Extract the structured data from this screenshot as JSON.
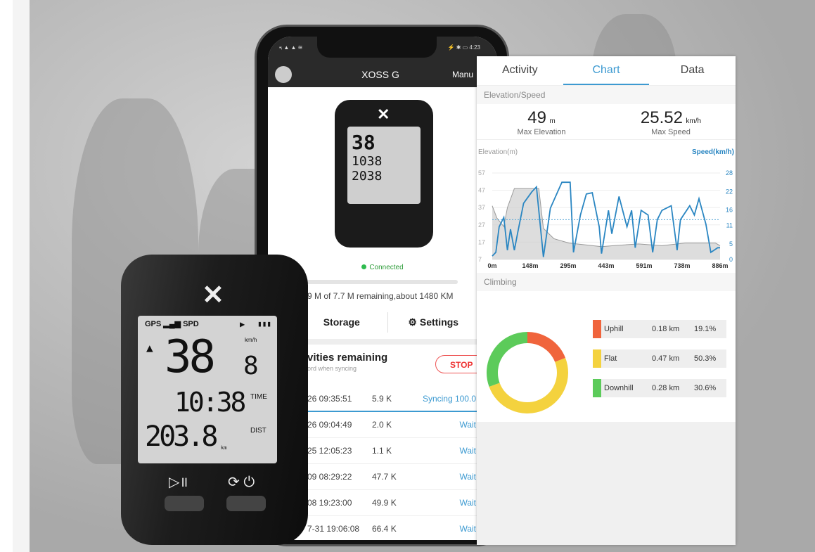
{
  "phone": {
    "status_left": "▪ᵢ ▲ ▲ ≋",
    "status_right": "⚡ ✱ ▭ 4:23",
    "app_title": "XOSS G",
    "manual_label": "Manu",
    "mini_device": {
      "speed": "38",
      "dec": "8",
      "time": "1038",
      "dist": "2038"
    },
    "connection_status": "Connected",
    "storage_fraction": 0.03,
    "storage_text": "9 M of 7.7 M remaining,about 1480 KM",
    "storage_label": "Storage",
    "settings_label": "Settings",
    "activities_heading": "vities remaining",
    "activities_sub": "ord when syncing",
    "stop_label": "STOP",
    "rows": [
      {
        "date": "26 09:35:51",
        "size": "5.9 K",
        "status": "Syncing 100.0"
      },
      {
        "date": "26 09:04:49",
        "size": "2.0 K",
        "status": "Wait"
      },
      {
        "date": "25 12:05:23",
        "size": "1.1 K",
        "status": "Wait"
      },
      {
        "date": "09 08:29:22",
        "size": "47.7 K",
        "status": "Wait"
      },
      {
        "date": "08 19:23:00",
        "size": "49.9 K",
        "status": "Wait"
      },
      {
        "date": "7-31 19:06:08",
        "size": "66.4 K",
        "status": "Wait"
      }
    ]
  },
  "panel": {
    "tabs": [
      "Activity",
      "Chart",
      "Data"
    ],
    "active_tab": "Chart",
    "section_elev": "Elevation/Speed",
    "max_elev": "49",
    "max_elev_unit": "m",
    "max_elev_label": "Max Elevation",
    "max_speed": "25.52",
    "max_speed_unit": "km/h",
    "max_speed_label": "Max Speed",
    "section_climb": "Climbing"
  },
  "device": {
    "gps": "GPS",
    "spd": "SPD",
    "speed": "38",
    "dec": "8",
    "unit": "km/h",
    "time_label": "TIME",
    "time": "10:38",
    "dist_label": "DIST",
    "dist": "203.8",
    "dist_unit": "km"
  },
  "chart_data": [
    {
      "type": "line",
      "ylabel": "Elevation(m)",
      "y2label": "Speed(km/h)",
      "x_ticks": [
        "0m",
        "148m",
        "295m",
        "443m",
        "591m",
        "738m",
        "886m"
      ],
      "xlim": [
        0,
        886
      ],
      "y_ticks": [
        57,
        47,
        37,
        27,
        17,
        7
      ],
      "ylim": [
        7,
        57
      ],
      "y2_ticks": [
        28,
        22,
        16,
        11,
        5,
        0
      ],
      "y2lim": [
        0,
        28
      ],
      "average_speed_line": 12.9,
      "colors": {
        "speed": "#2a86c2",
        "elevation": "#9a9a9a"
      },
      "elevation": [
        [
          0,
          38
        ],
        [
          18,
          31
        ],
        [
          45,
          26
        ],
        [
          59,
          37
        ],
        [
          86,
          48
        ],
        [
          109,
          48
        ],
        [
          181,
          48
        ],
        [
          199,
          25
        ],
        [
          240,
          19
        ],
        [
          298,
          16.5
        ],
        [
          425,
          14.4
        ],
        [
          470,
          15
        ],
        [
          569,
          16
        ],
        [
          660,
          15
        ],
        [
          750,
          16.5
        ],
        [
          868,
          16.5
        ],
        [
          886,
          15
        ]
      ],
      "speed": [
        [
          0,
          1.1
        ],
        [
          14,
          2.3
        ],
        [
          27,
          10.6
        ],
        [
          45,
          13.6
        ],
        [
          59,
          3
        ],
        [
          71,
          9.8
        ],
        [
          86,
          3
        ],
        [
          100,
          9.1
        ],
        [
          122,
          18.2
        ],
        [
          154,
          21.9
        ],
        [
          172,
          23.5
        ],
        [
          199,
          0.8
        ],
        [
          226,
          16.6
        ],
        [
          271,
          25
        ],
        [
          303,
          25
        ],
        [
          316,
          2.3
        ],
        [
          343,
          14.4
        ],
        [
          366,
          21.2
        ],
        [
          389,
          21.6
        ],
        [
          416,
          10.6
        ],
        [
          425,
          1.9
        ],
        [
          452,
          15.9
        ],
        [
          465,
          8.3
        ],
        [
          493,
          20.4
        ],
        [
          524,
          10.6
        ],
        [
          542,
          15.9
        ],
        [
          556,
          3.8
        ],
        [
          579,
          15.9
        ],
        [
          606,
          14.4
        ],
        [
          624,
          2.3
        ],
        [
          642,
          12.9
        ],
        [
          660,
          15.9
        ],
        [
          696,
          17.4
        ],
        [
          719,
          3
        ],
        [
          732,
          12.9
        ],
        [
          768,
          17.4
        ],
        [
          786,
          14.4
        ],
        [
          804,
          19.7
        ],
        [
          831,
          11.4
        ],
        [
          850,
          2.3
        ],
        [
          877,
          3.8
        ],
        [
          886,
          3.8
        ]
      ]
    },
    {
      "type": "pie",
      "variant": "donut",
      "slices": [
        {
          "name": "Uphill",
          "distance": "0.18 km",
          "percent": 19.1,
          "label": "19.1%",
          "color": "#f0643c"
        },
        {
          "name": "Flat",
          "distance": "0.47 km",
          "percent": 50.3,
          "label": "50.3%",
          "color": "#f4d23e"
        },
        {
          "name": "Downhill",
          "distance": "0.28 km",
          "percent": 30.6,
          "label": "30.6%",
          "color": "#5ccb5a"
        }
      ]
    }
  ]
}
